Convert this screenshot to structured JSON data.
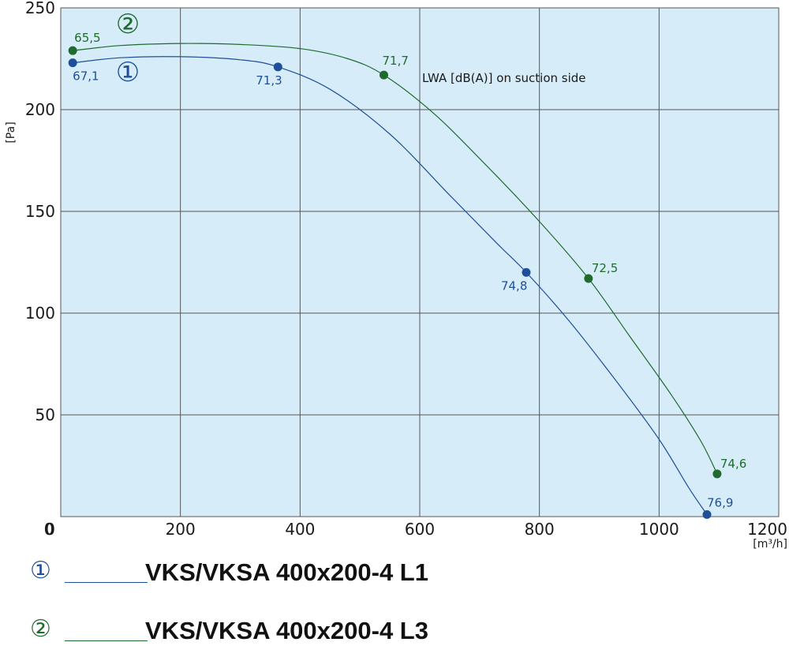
{
  "chart_data": {
    "type": "line",
    "xlabel": "[m³/h]",
    "ylabel": "[Pa]",
    "xlim": [
      0,
      1200
    ],
    "ylim": [
      0,
      250
    ],
    "xticks": [
      0,
      200,
      400,
      600,
      800,
      1000,
      1200
    ],
    "yticks": [
      0,
      50,
      100,
      150,
      200,
      250
    ],
    "grid": true,
    "annotation": "LWA [dB(A)] on suction side",
    "series": [
      {
        "name": "VKS/VKSA 400x200-4 L1",
        "number": "①",
        "color": "#1f4f9a",
        "curve": [
          [
            20,
            223
          ],
          [
            100,
            225.5
          ],
          [
            200,
            226
          ],
          [
            300,
            224.5
          ],
          [
            363,
            221
          ],
          [
            450,
            210
          ],
          [
            550,
            188
          ],
          [
            650,
            158
          ],
          [
            730,
            134
          ],
          [
            778,
            120
          ],
          [
            850,
            96
          ],
          [
            930,
            66
          ],
          [
            1000,
            38
          ],
          [
            1050,
            14
          ],
          [
            1080,
            1
          ]
        ],
        "points": [
          {
            "x": 20,
            "y": 223,
            "label": "67,1"
          },
          {
            "x": 363,
            "y": 221,
            "label": "71,3"
          },
          {
            "x": 778,
            "y": 120,
            "label": "74,8"
          },
          {
            "x": 1080,
            "y": 1,
            "label": "76,9"
          }
        ]
      },
      {
        "name": "VKS/VKSA 400x200-4 L3",
        "number": "②",
        "color": "#1f6b2e",
        "curve": [
          [
            20,
            229
          ],
          [
            100,
            231.5
          ],
          [
            200,
            232.5
          ],
          [
            300,
            232
          ],
          [
            400,
            230
          ],
          [
            480,
            225
          ],
          [
            540,
            217
          ],
          [
            620,
            199
          ],
          [
            700,
            176
          ],
          [
            800,
            145
          ],
          [
            882,
            117
          ],
          [
            950,
            89
          ],
          [
            1020,
            60
          ],
          [
            1070,
            37
          ],
          [
            1097,
            21
          ]
        ],
        "points": [
          {
            "x": 20,
            "y": 229,
            "label": "65,5"
          },
          {
            "x": 540,
            "y": 217,
            "label": "71,7"
          },
          {
            "x": 882,
            "y": 117,
            "label": "72,5"
          },
          {
            "x": 1097,
            "y": 21,
            "label": "74,6"
          }
        ]
      }
    ]
  },
  "legend": {
    "items": [
      {
        "number": "①",
        "label": "VKS/VKSA 400x200-4 L1",
        "color": "#1f4f9a"
      },
      {
        "number": "②",
        "label": "VKS/VKSA 400x200-4 L3",
        "color": "#1f6b2e"
      }
    ]
  }
}
